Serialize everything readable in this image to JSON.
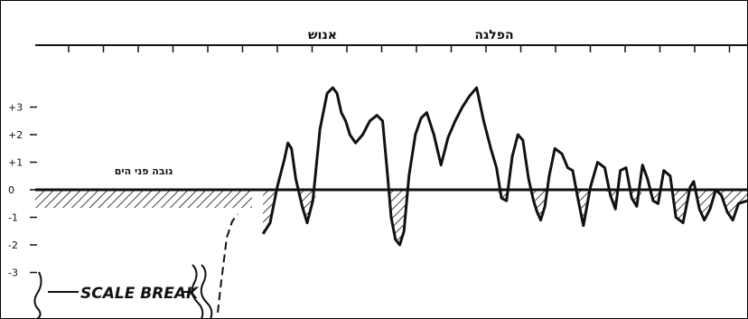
{
  "chart_data": {
    "type": "line",
    "title": "",
    "xlabel": "",
    "ylabel": "",
    "ylim": [
      -3.5,
      4.5
    ],
    "x_range": [
      0,
      100
    ],
    "grid": false,
    "legend": "none",
    "y_ticks": [
      {
        "value": 3,
        "label": "+3"
      },
      {
        "value": 2,
        "label": "+2"
      },
      {
        "value": 1,
        "label": "+1"
      },
      {
        "value": 0,
        "label": "0"
      },
      {
        "value": -1,
        "label": "-1"
      },
      {
        "value": -2,
        "label": "-2"
      },
      {
        "value": -3,
        "label": "-3"
      }
    ],
    "annotations": [
      {
        "text": "אנוש",
        "x": 43,
        "y": 4.1
      },
      {
        "text": "הפלגה",
        "x": 66,
        "y": 4.1
      },
      {
        "text": "גובה פני הים",
        "x": 18,
        "y": 0.8
      },
      {
        "text": "SCALE BREAK",
        "x": 18,
        "y": -3.1
      }
    ],
    "series": [
      {
        "x": [
          32,
          33,
          34,
          35,
          35.5,
          36,
          36.6,
          37.5,
          38.2,
          39,
          40,
          41,
          41.8,
          42.4,
          43,
          43.6,
          44.2,
          45,
          46,
          47,
          48,
          48.8,
          49.5,
          50,
          50.6,
          51.2,
          51.8,
          52.5,
          53.4,
          54.2,
          55,
          56,
          57,
          58,
          59,
          60,
          61,
          62,
          63,
          64,
          64.8,
          65.5,
          66.2,
          67,
          67.8,
          68.5,
          69.3,
          70,
          70.5,
          71,
          71.6,
          72.2,
          73,
          74,
          74.8,
          75.5,
          76.3,
          77,
          78,
          79,
          80,
          80.8,
          81.5,
          82.2,
          83,
          83.8,
          84.5,
          85.3,
          86,
          86.8,
          87.5,
          88.3,
          89.2,
          90,
          91,
          92,
          92.5,
          93.3,
          94,
          94.8,
          95.6,
          96.4,
          97.2,
          98,
          98.8,
          100
        ],
        "values": [
          -1.6,
          -1.2,
          0.1,
          1.1,
          1.7,
          1.5,
          0.4,
          -0.6,
          -1.2,
          -0.4,
          2.2,
          3.5,
          3.7,
          3.5,
          2.8,
          2.5,
          2.0,
          1.7,
          2.0,
          2.5,
          2.7,
          2.5,
          0.5,
          -1.0,
          -1.8,
          -2.0,
          -1.5,
          0.5,
          2.0,
          2.6,
          2.8,
          2.0,
          0.9,
          1.9,
          2.5,
          3.0,
          3.4,
          3.7,
          2.5,
          1.5,
          0.8,
          -0.3,
          -0.4,
          1.2,
          2.0,
          1.8,
          0.4,
          -0.4,
          -0.8,
          -1.1,
          -0.6,
          0.5,
          1.5,
          1.3,
          0.8,
          0.7,
          -0.4,
          -1.3,
          0.1,
          1.0,
          0.8,
          -0.2,
          -0.7,
          0.7,
          0.8,
          -0.3,
          -0.6,
          0.9,
          0.4,
          -0.4,
          -0.5,
          0.7,
          0.5,
          -1.0,
          -1.2,
          0.1,
          0.3,
          -0.7,
          -1.1,
          -0.7,
          0.0,
          -0.2,
          -0.8,
          -1.1,
          -0.5,
          -0.4
        ]
      }
    ]
  }
}
